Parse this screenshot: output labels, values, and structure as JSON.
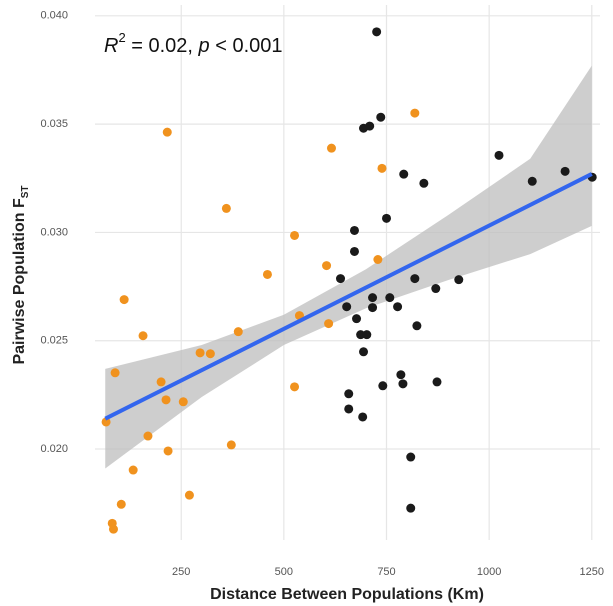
{
  "chart_data": {
    "type": "scatter",
    "x_label": "Distance Between Populations (Km)",
    "y_label": [
      "Pairwise Population F",
      "ST"
    ],
    "annotation": [
      "R",
      "2",
      " = 0.02, ",
      "p",
      " < 0.001"
    ],
    "xlim": [
      40,
      1270
    ],
    "ylim": [
      0.0158,
      0.0405
    ],
    "xticks": [
      250,
      500,
      750,
      1000,
      1250
    ],
    "yticks": [
      {
        "value": 0.02,
        "label": "0.020"
      },
      0.025,
      {
        "value": 0.03,
        "label": "0.030"
      },
      0.035,
      {
        "value": 0.04,
        "label": "0.040"
      }
    ],
    "grid": true,
    "series": [
      {
        "color": "#f0921e",
        "x": [
          67,
          89,
          82,
          85,
          104,
          111,
          133,
          157,
          169,
          201,
          213,
          216,
          218,
          255,
          270,
          296,
          321,
          360,
          372,
          389,
          460,
          526,
          526,
          538,
          604,
          609,
          616,
          729,
          739,
          819
        ],
        "values": [
          0.02125,
          0.02352,
          0.01657,
          0.0163,
          0.01745,
          0.0269,
          0.01903,
          0.02523,
          0.0206,
          0.0231,
          0.02227,
          0.03463,
          0.01991,
          0.02218,
          0.01787,
          0.02444,
          0.0244,
          0.03111,
          0.02019,
          0.02542,
          0.02806,
          0.02986,
          0.02287,
          0.02616,
          0.02847,
          0.02579,
          0.03389,
          0.02875,
          0.03296,
          0.03551
        ]
      },
      {
        "color": "#1a1a1a",
        "x": [
          726,
          736,
          694,
          709,
          672,
          672,
          638,
          653,
          677,
          687,
          702,
          716,
          716,
          694,
          658,
          658,
          692,
          741,
          750,
          758,
          777,
          785,
          790,
          792,
          819,
          824,
          841,
          870,
          873,
          809,
          809,
          926,
          1024,
          1105,
          1185,
          1251
        ],
        "values": [
          0.03926,
          0.03532,
          0.03481,
          0.03491,
          0.03009,
          0.02912,
          0.02787,
          0.02657,
          0.02602,
          0.02528,
          0.02528,
          0.02699,
          0.02653,
          0.02449,
          0.02255,
          0.02185,
          0.02148,
          0.02292,
          0.03065,
          0.02699,
          0.02657,
          0.02343,
          0.02301,
          0.03269,
          0.02787,
          0.02569,
          0.03227,
          0.02741,
          0.0231,
          0.01963,
          0.01727,
          0.02782,
          0.03356,
          0.03236,
          0.03282,
          0.03255
        ]
      }
    ],
    "trend": {
      "color": "#3366ee",
      "x": [
        65,
        1250
      ],
      "values": [
        0.0214,
        0.0327
      ]
    },
    "band": {
      "color": "#bdbdbd",
      "x": [
        65,
        300,
        500,
        700,
        900,
        1100,
        1250
      ],
      "lower": [
        0.0191,
        0.0224,
        0.0248,
        0.0265,
        0.0278,
        0.029,
        0.0303
      ],
      "upper": [
        0.0237,
        0.0248,
        0.0262,
        0.0283,
        0.0308,
        0.0334,
        0.0377
      ]
    }
  }
}
